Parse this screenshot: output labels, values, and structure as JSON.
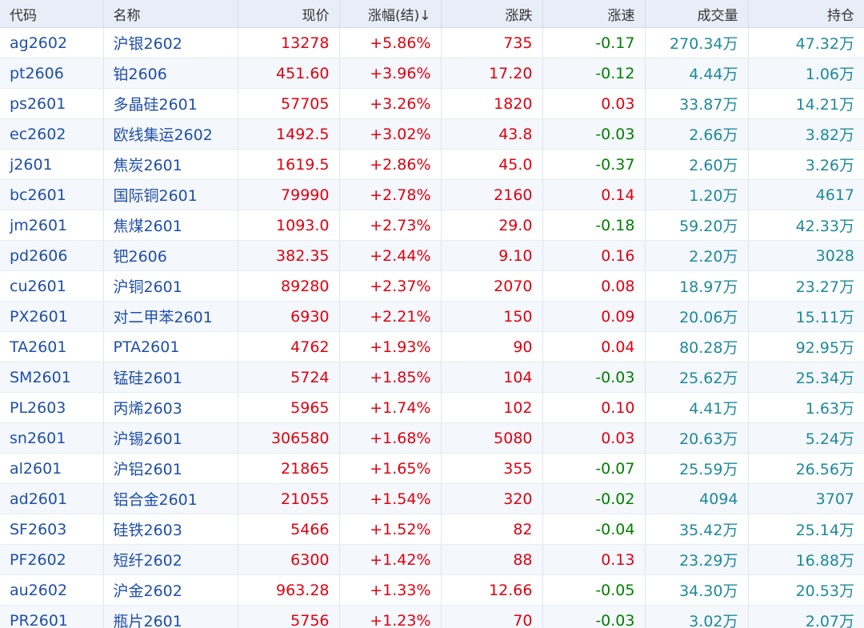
{
  "colors": {
    "up": "#e00010",
    "down": "#008000",
    "volume": "#1d8a9a",
    "link": "#1f4fa8",
    "header_bg": "#e8eef7"
  },
  "headers": [
    "代码",
    "名称",
    "现价",
    "涨幅(结)↓",
    "涨跌",
    "涨速",
    "成交量",
    "持仓"
  ],
  "rows": [
    {
      "code": "ag2602",
      "name": "沪银2602",
      "price": "13278",
      "chg_pct": "+5.86%",
      "chg": "735",
      "speed": "-0.17",
      "volume": "270.34万",
      "oi": "47.32万"
    },
    {
      "code": "pt2606",
      "name": "铂2606",
      "price": "451.60",
      "chg_pct": "+3.96%",
      "chg": "17.20",
      "speed": "-0.12",
      "volume": "4.44万",
      "oi": "1.06万"
    },
    {
      "code": "ps2601",
      "name": "多晶硅2601",
      "price": "57705",
      "chg_pct": "+3.26%",
      "chg": "1820",
      "speed": "0.03",
      "volume": "33.87万",
      "oi": "14.21万"
    },
    {
      "code": "ec2602",
      "name": "欧线集运2602",
      "price": "1492.5",
      "chg_pct": "+3.02%",
      "chg": "43.8",
      "speed": "-0.03",
      "volume": "2.66万",
      "oi": "3.82万"
    },
    {
      "code": "j2601",
      "name": "焦炭2601",
      "price": "1619.5",
      "chg_pct": "+2.86%",
      "chg": "45.0",
      "speed": "-0.37",
      "volume": "2.60万",
      "oi": "3.26万"
    },
    {
      "code": "bc2601",
      "name": "国际铜2601",
      "price": "79990",
      "chg_pct": "+2.78%",
      "chg": "2160",
      "speed": "0.14",
      "volume": "1.20万",
      "oi": "4617"
    },
    {
      "code": "jm2601",
      "name": "焦煤2601",
      "price": "1093.0",
      "chg_pct": "+2.73%",
      "chg": "29.0",
      "speed": "-0.18",
      "volume": "59.20万",
      "oi": "42.33万"
    },
    {
      "code": "pd2606",
      "name": "钯2606",
      "price": "382.35",
      "chg_pct": "+2.44%",
      "chg": "9.10",
      "speed": "0.16",
      "volume": "2.20万",
      "oi": "3028"
    },
    {
      "code": "cu2601",
      "name": "沪铜2601",
      "price": "89280",
      "chg_pct": "+2.37%",
      "chg": "2070",
      "speed": "0.08",
      "volume": "18.97万",
      "oi": "23.27万"
    },
    {
      "code": "PX2601",
      "name": "对二甲苯2601",
      "price": "6930",
      "chg_pct": "+2.21%",
      "chg": "150",
      "speed": "0.09",
      "volume": "20.06万",
      "oi": "15.11万"
    },
    {
      "code": "TA2601",
      "name": "PTA2601",
      "price": "4762",
      "chg_pct": "+1.93%",
      "chg": "90",
      "speed": "0.04",
      "volume": "80.28万",
      "oi": "92.95万"
    },
    {
      "code": "SM2601",
      "name": "锰硅2601",
      "price": "5724",
      "chg_pct": "+1.85%",
      "chg": "104",
      "speed": "-0.03",
      "volume": "25.62万",
      "oi": "25.34万"
    },
    {
      "code": "PL2603",
      "name": "丙烯2603",
      "price": "5965",
      "chg_pct": "+1.74%",
      "chg": "102",
      "speed": "0.10",
      "volume": "4.41万",
      "oi": "1.63万"
    },
    {
      "code": "sn2601",
      "name": "沪锡2601",
      "price": "306580",
      "chg_pct": "+1.68%",
      "chg": "5080",
      "speed": "0.03",
      "volume": "20.63万",
      "oi": "5.24万"
    },
    {
      "code": "al2601",
      "name": "沪铝2601",
      "price": "21865",
      "chg_pct": "+1.65%",
      "chg": "355",
      "speed": "-0.07",
      "volume": "25.59万",
      "oi": "26.56万"
    },
    {
      "code": "ad2601",
      "name": "铝合金2601",
      "price": "21055",
      "chg_pct": "+1.54%",
      "chg": "320",
      "speed": "-0.02",
      "volume": "4094",
      "oi": "3707"
    },
    {
      "code": "SF2603",
      "name": "硅铁2603",
      "price": "5466",
      "chg_pct": "+1.52%",
      "chg": "82",
      "speed": "-0.04",
      "volume": "35.42万",
      "oi": "25.14万"
    },
    {
      "code": "PF2602",
      "name": "短纤2602",
      "price": "6300",
      "chg_pct": "+1.42%",
      "chg": "88",
      "speed": "0.13",
      "volume": "23.29万",
      "oi": "16.88万"
    },
    {
      "code": "au2602",
      "name": "沪金2602",
      "price": "963.28",
      "chg_pct": "+1.33%",
      "chg": "12.66",
      "speed": "-0.05",
      "volume": "34.30万",
      "oi": "20.53万"
    },
    {
      "code": "PR2601",
      "name": "瓶片2601",
      "price": "5756",
      "chg_pct": "+1.23%",
      "chg": "70",
      "speed": "-0.03",
      "volume": "3.02万",
      "oi": "2.07万"
    }
  ]
}
